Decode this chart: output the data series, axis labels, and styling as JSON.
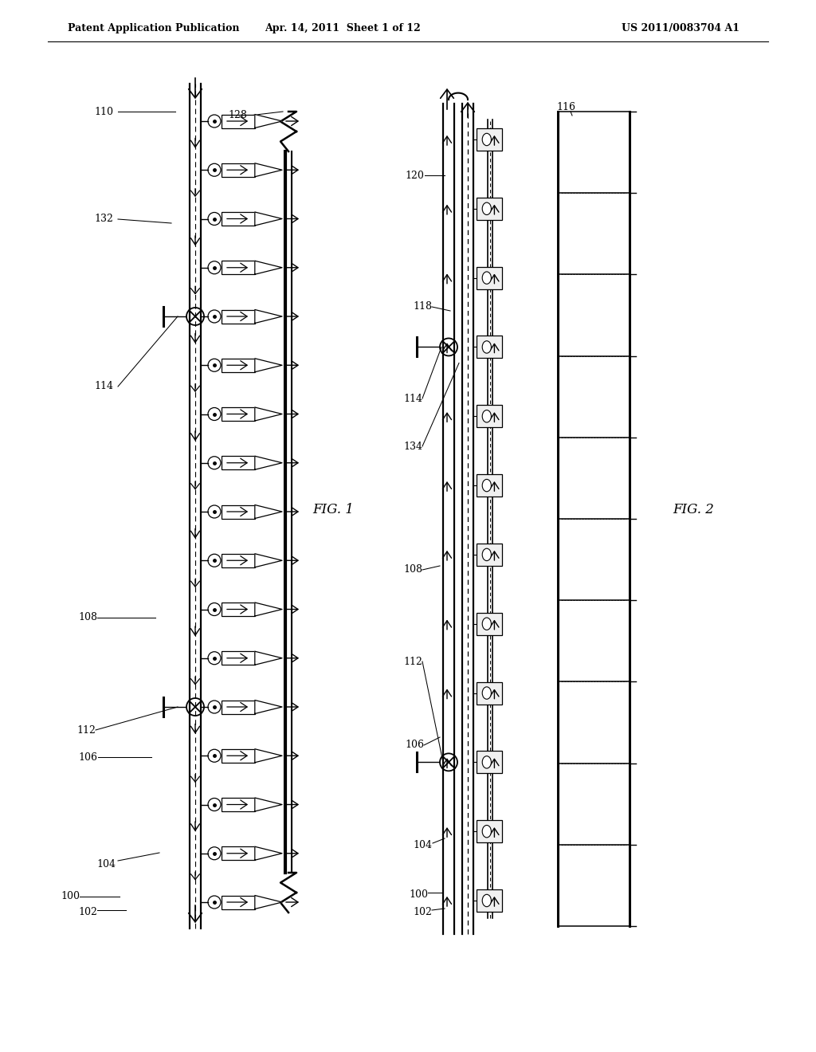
{
  "bg_color": "#ffffff",
  "line_color": "#000000",
  "header_left": "Patent Application Publication",
  "header_center": "Apr. 14, 2011  Sheet 1 of 12",
  "header_right": "US 2011/0083704 A1",
  "fig1_label": "FIG. 1",
  "fig2_label": "FIG. 2"
}
